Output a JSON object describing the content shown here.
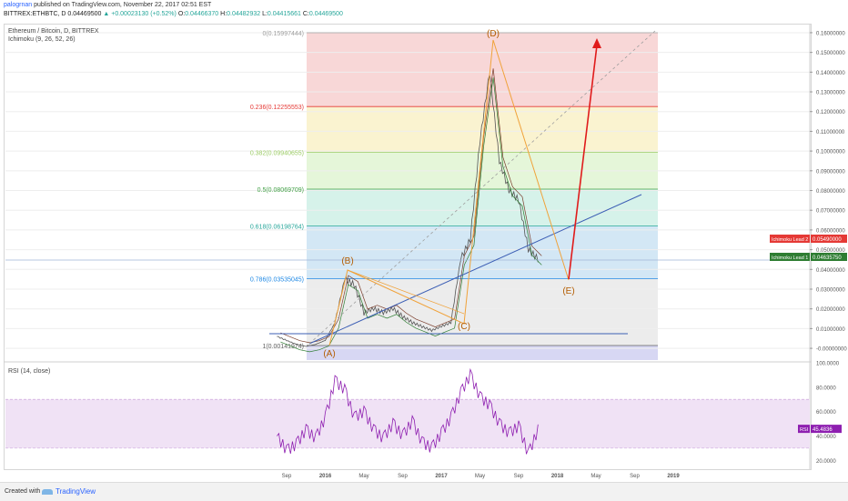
{
  "header": {
    "user": "palogrnan",
    "publish_text": " published on TradingView.com, November 22, 2017 02:51 EST",
    "symbol": "BITTREX:ETHBTC, D",
    "last": "0.04469500",
    "change": "+0.00023130 (+0.52%)",
    "open_label": "O:",
    "open": "0.04466370",
    "high_label": "H:",
    "high": "0.04482932",
    "low_label": "L:",
    "low": "0.04415661",
    "close_label": "C:",
    "close": "0.04469500"
  },
  "legend": {
    "pair": "Ethereum / Bitcoin, D, BITTREX",
    "indicator": "Ichimoku (9, 26, 52, 26)",
    "rsi": "RSI (14, close)"
  },
  "footer": {
    "created": "Created with",
    "brand": "TradingView"
  },
  "colors": {
    "fib_0": "#f8d7d7",
    "fib_0236": "#faf3d0",
    "fib_0382": "#e5f6d9",
    "fib_05": "#d6f2ea",
    "fib_0618": "#d3e7f5",
    "fib_0786": "#ececec",
    "fib_1": "#d7d7f3",
    "price": "#555555",
    "tenkan": "#7a3d2b",
    "kijun": "#2e7d32",
    "trend": "#3d5fb5",
    "wave": "#f0a23a",
    "arrow": "#e01b1b",
    "rsi_line": "#8e1fb0",
    "rsi_band": "#f0e2f5"
  },
  "chart_data": [
    {
      "type": "line",
      "title": "Ethereum / Bitcoin, D, BITTREX",
      "xlabel": "",
      "ylabel": "",
      "ylim": [
        0,
        0.16
      ],
      "x_ticks": [
        "Sep",
        "2016",
        "May",
        "Sep",
        "2017",
        "May",
        "Sep",
        "2018",
        "May",
        "Sep",
        "2019"
      ],
      "y_ticks": [
        "0.16000000",
        "0.15000000",
        "0.14000000",
        "0.13000000",
        "0.12000000",
        "0.11000000",
        "0.10000000",
        "0.09000000",
        "0.08000000",
        "0.07000000",
        "0.06000000",
        "0.05000000",
        "0.04000000",
        "0.03000000",
        "0.02000000",
        "0.01000000",
        "-0.00000000"
      ],
      "fibonacci": [
        {
          "label": "0(0.15997444)",
          "value": 0.15997444
        },
        {
          "label": "0.236(0.12255553)",
          "value": 0.12255553
        },
        {
          "label": "0.382(0.09940655)",
          "value": 0.09940655
        },
        {
          "label": "0.5(0.08069709)",
          "value": 0.08069709
        },
        {
          "label": "0.618(0.06198764)",
          "value": 0.06198764
        },
        {
          "label": "0.786(0.03535045)",
          "value": 0.03535045
        },
        {
          "label": "1(0.00141974)",
          "value": 0.00141974
        }
      ],
      "wave_labels": [
        "(A)",
        "(B)",
        "(C)",
        "(D)",
        "(E)"
      ],
      "price_badges": [
        {
          "label": "Ichimoku Lead 2",
          "value": "0.05490000",
          "color": "#e53935"
        },
        {
          "label": "Ichimoku Lead 1",
          "value": "0.04635750",
          "color": "#2e7d32"
        }
      ],
      "series": [
        {
          "name": "ETHBTC",
          "x": [
            "2015-08",
            "2015-09",
            "2015-10",
            "2015-11",
            "2015-12",
            "2016-01",
            "2016-02",
            "2016-03",
            "2016-04",
            "2016-05",
            "2016-06",
            "2016-07",
            "2016-08",
            "2016-09",
            "2016-10",
            "2016-11",
            "2016-12",
            "2017-01",
            "2017-02",
            "2017-03",
            "2017-04",
            "2017-05",
            "2017-06",
            "2017-07",
            "2017-08",
            "2017-09",
            "2017-10",
            "2017-11"
          ],
          "values": [
            0.006,
            0.004,
            0.002,
            0.001,
            0.002,
            0.004,
            0.013,
            0.035,
            0.032,
            0.018,
            0.02,
            0.018,
            0.02,
            0.016,
            0.013,
            0.011,
            0.009,
            0.011,
            0.013,
            0.045,
            0.055,
            0.105,
            0.14,
            0.095,
            0.08,
            0.075,
            0.05,
            0.045
          ]
        }
      ]
    },
    {
      "type": "line",
      "title": "RSI (14, close)",
      "ylim": [
        15,
        100
      ],
      "y_ticks": [
        "100.0000",
        "80.0000",
        "60.0000",
        "40.0000",
        "20.0000"
      ],
      "last_value": "45.4836",
      "band": [
        30,
        70
      ],
      "series": [
        {
          "name": "RSI",
          "x": [
            "2015-08",
            "2015-09",
            "2015-10",
            "2015-11",
            "2015-12",
            "2016-01",
            "2016-02",
            "2016-03",
            "2016-04",
            "2016-05",
            "2016-06",
            "2016-07",
            "2016-08",
            "2016-09",
            "2016-10",
            "2016-11",
            "2016-12",
            "2017-01",
            "2017-02",
            "2017-03",
            "2017-04",
            "2017-05",
            "2017-06",
            "2017-07",
            "2017-08",
            "2017-09",
            "2017-10",
            "2017-11"
          ],
          "values": [
            40,
            28,
            33,
            45,
            38,
            55,
            85,
            78,
            55,
            60,
            45,
            38,
            50,
            40,
            52,
            35,
            30,
            42,
            55,
            75,
            90,
            72,
            65,
            50,
            42,
            48,
            25,
            45
          ]
        }
      ]
    }
  ]
}
